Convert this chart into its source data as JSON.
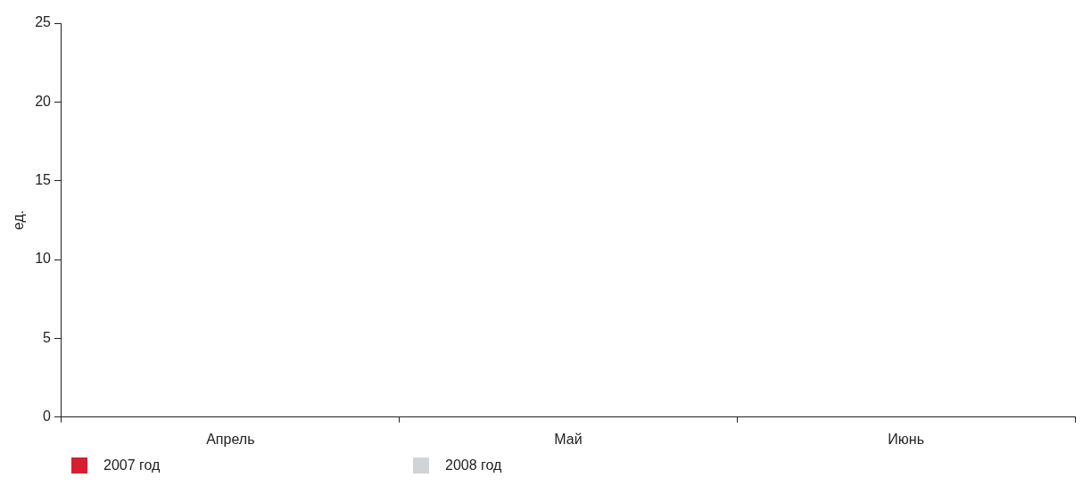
{
  "chart_data": {
    "type": "bar",
    "ylabel": "ед.",
    "categories": [
      "Апрель",
      "Май",
      "Июнь"
    ],
    "series": [
      {
        "name": "2007 год",
        "color": "#d42030",
        "values": [
          null,
          null,
          null
        ]
      },
      {
        "name": "2008 год",
        "color": "#cfd4d9",
        "values": [
          null,
          null,
          null
        ]
      }
    ],
    "ylim": [
      0,
      25
    ],
    "yticks": [
      0,
      5,
      10,
      15,
      20,
      25
    ],
    "grid": false,
    "legend": "bottom left"
  }
}
